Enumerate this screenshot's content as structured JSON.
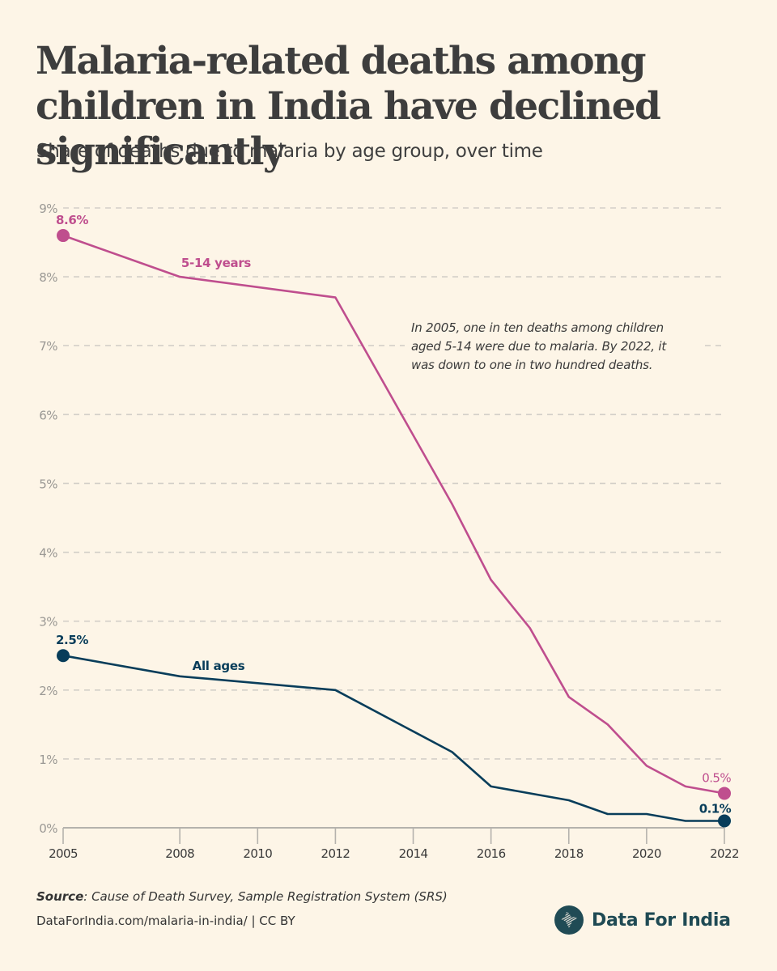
{
  "header": {
    "title": "Malaria-related deaths among children in India have declined significantly",
    "subtitle": "Share of deaths due to malaria by age group, over time"
  },
  "chart_data": {
    "type": "line",
    "title": "Malaria-related deaths among children in India have declined significantly",
    "subtitle": "Share of deaths due to malaria by age group, over time",
    "xlabel": "",
    "ylabel": "",
    "xlim": [
      2005,
      2022
    ],
    "ylim": [
      0,
      9
    ],
    "x_ticks": [
      2005,
      2008,
      2010,
      2012,
      2014,
      2016,
      2018,
      2020,
      2022
    ],
    "y_ticks": [
      0,
      1,
      2,
      3,
      4,
      5,
      6,
      7,
      8,
      9
    ],
    "y_tick_labels": [
      "0%",
      "1%",
      "2%",
      "3%",
      "4%",
      "5%",
      "6%",
      "7%",
      "8%",
      "9%"
    ],
    "grid": "horizontal-dashed",
    "legend": "inline-labels",
    "series": [
      {
        "name": "5-14 years",
        "color": "#bf4e8e",
        "x": [
          2005,
          2008,
          2012,
          2015,
          2016,
          2017,
          2018,
          2019,
          2020,
          2021,
          2022
        ],
        "values": [
          8.6,
          8.0,
          7.7,
          4.7,
          3.6,
          2.9,
          1.9,
          1.5,
          0.9,
          0.6,
          0.5
        ],
        "start_label": "8.6%",
        "end_label": "0.5%",
        "series_label": "5-14 years"
      },
      {
        "name": "All ages",
        "color": "#083d5a",
        "x": [
          2005,
          2008,
          2012,
          2015,
          2016,
          2018,
          2019,
          2020,
          2021,
          2022
        ],
        "values": [
          2.5,
          2.2,
          2.0,
          1.1,
          0.6,
          0.4,
          0.2,
          0.2,
          0.1,
          0.1
        ],
        "start_label": "2.5%",
        "end_label": "0.1%",
        "series_label": "All ages"
      }
    ],
    "annotations": [
      {
        "lines": [
          "In 2005, one in ten deaths among children",
          "aged 5-14 were due to malaria. By 2022, it",
          "was down to one in two hundred deaths."
        ]
      }
    ]
  },
  "footer": {
    "source_label": "Source",
    "source_text": ":  Cause of Death Survey, Sample Registration System (SRS)",
    "link_text": "DataForIndia.com/malaria-in-india/  |  CC BY",
    "brand": "Data For India",
    "brand_icon": "india-map-icon"
  },
  "colors": {
    "background": "#fdf5e7",
    "pink": "#bf4e8e",
    "navy": "#083d5a",
    "grid": "#d3cfc8",
    "axis": "#b5b2ad",
    "tick_label": "#9a9894",
    "brand": "#204b55"
  }
}
